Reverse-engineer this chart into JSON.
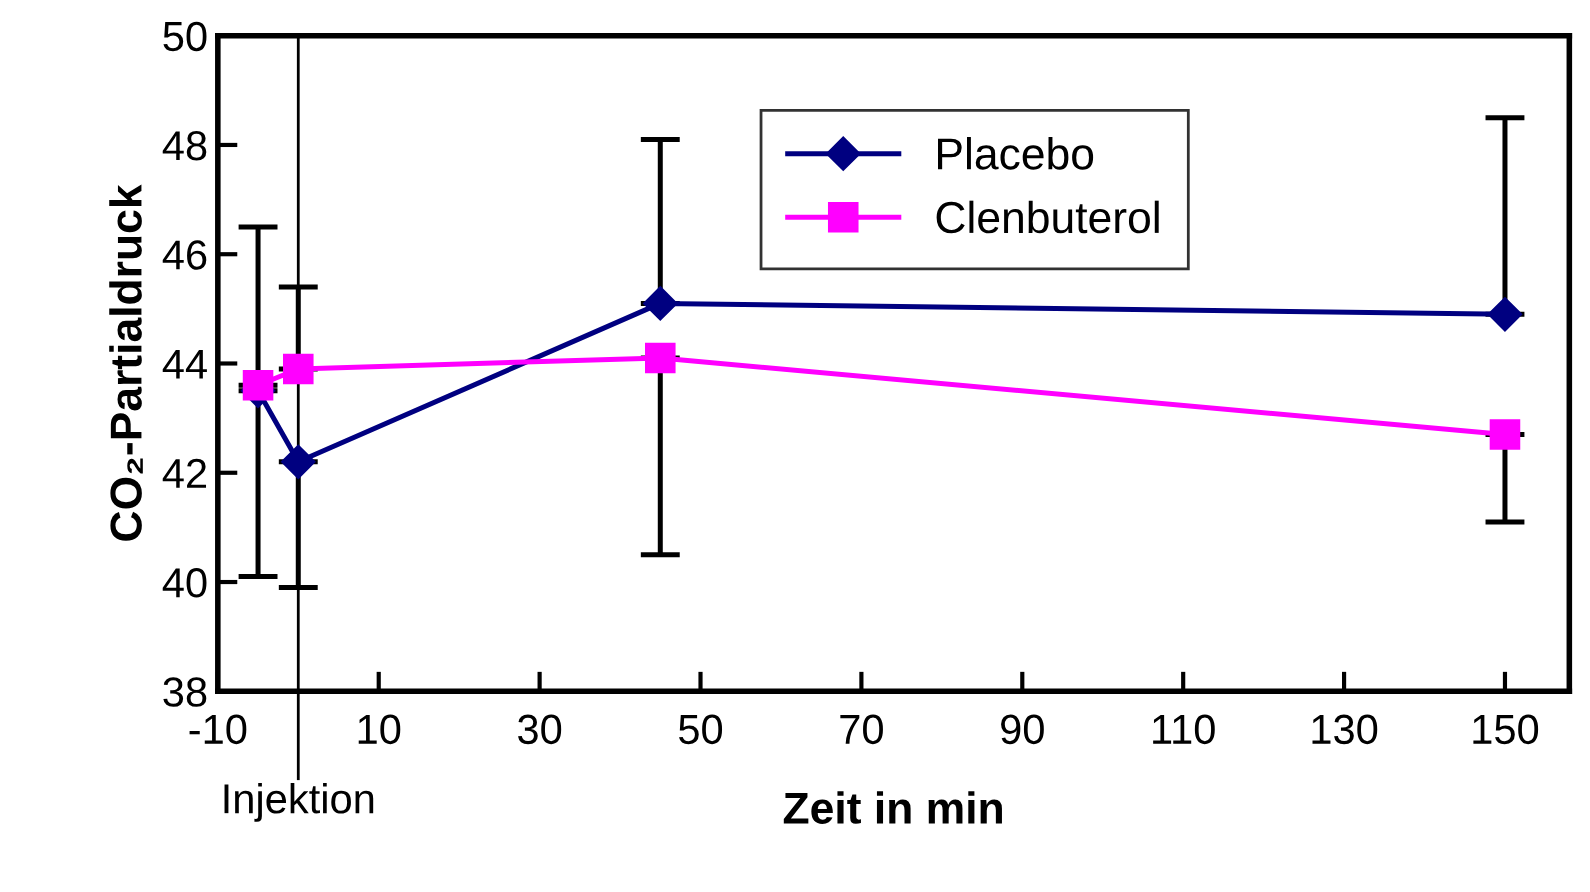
{
  "chart_data": {
    "type": "line",
    "xlabel": "Zeit in min",
    "ylabel": "CO₂-Partialdruck",
    "x": [
      -5,
      0,
      45,
      150
    ],
    "series": [
      {
        "name": "Placebo",
        "color": "#000080",
        "marker": "diamond",
        "values": [
          43.5,
          42.2,
          45.1,
          44.9
        ],
        "errors": [
          [
            43.5,
            46.5
          ],
          [
            39.9,
            42.2
          ],
          [
            45.1,
            48.1
          ],
          [
            44.9,
            48.5
          ]
        ]
      },
      {
        "name": "Clenbuterol",
        "color": "#ff00ff",
        "marker": "square",
        "values": [
          43.6,
          43.9,
          44.1,
          42.7
        ],
        "errors": [
          [
            40.1,
            43.6
          ],
          [
            43.9,
            45.4
          ],
          [
            40.5,
            44.1
          ],
          [
            41.1,
            42.7
          ]
        ]
      }
    ],
    "xlim": [
      -10,
      158
    ],
    "xticks": [
      -10,
      10,
      30,
      50,
      70,
      90,
      110,
      130,
      150
    ],
    "ylim": [
      38,
      50
    ],
    "yticks": [
      38,
      40,
      42,
      44,
      46,
      48,
      50
    ],
    "ref_lines": [
      {
        "axis": "x",
        "value": 0,
        "label": "Injektion",
        "color": "#000000"
      }
    ],
    "grid": false,
    "legend": "top"
  }
}
